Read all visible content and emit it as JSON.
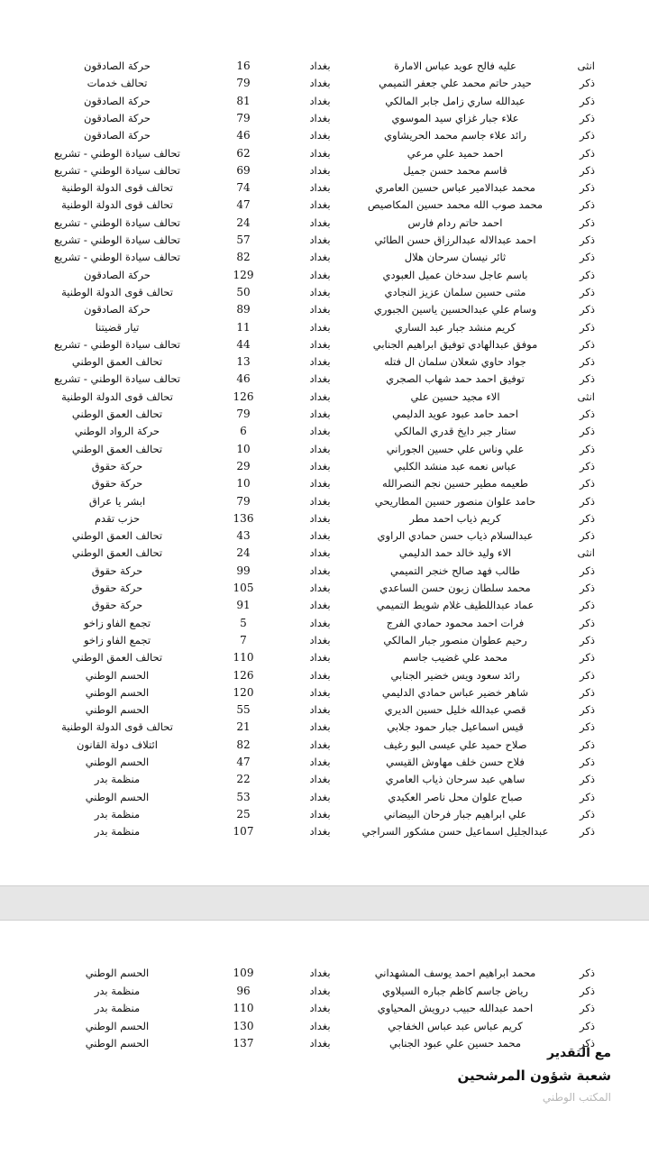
{
  "city_default": "بغداد",
  "table_page1": [
    [
      "انثى",
      "عليه فالح عويد عباس الامارة",
      "بغداد",
      "16",
      "حركة الصادقون"
    ],
    [
      "ذكر",
      "حيدر حاتم محمد علي جعفر التميمي",
      "بغداد",
      "79",
      "تحالف خدمات"
    ],
    [
      "ذكر",
      "عبدالله ساري زامل جابر المالكي",
      "بغداد",
      "81",
      "حركة الصادقون"
    ],
    [
      "ذكر",
      "علاء جبار غزاي سيد الموسوي",
      "بغداد",
      "79",
      "حركة الصادقون"
    ],
    [
      "ذكر",
      "رائد علاء جاسم محمد  الحريشاوي",
      "بغداد",
      "46",
      "حركة الصادقون"
    ],
    [
      "ذكر",
      "احمد حميد علي مرعي",
      "بغداد",
      "62",
      "تحالف سيادة الوطني - تشريع"
    ],
    [
      "ذكر",
      "قاسم محمد حسن جميل",
      "بغداد",
      "69",
      "تحالف سيادة الوطني - تشريع"
    ],
    [
      "ذكر",
      "محمد عبدالامير عباس  حسين العامري",
      "بغداد",
      "74",
      "تحالف قوى الدولة الوطنية"
    ],
    [
      "ذكر",
      "محمد صوب الله محمد حسين المكاصيص",
      "بغداد",
      "47",
      "تحالف قوى الدولة الوطنية"
    ],
    [
      "ذكر",
      "احمد حاتم ردام فارس",
      "بغداد",
      "24",
      "تحالف سيادة الوطني - تشريع"
    ],
    [
      "ذكر",
      "احمد عبدالاله عبدالرزاق حسن  الطائي",
      "بغداد",
      "57",
      "تحالف سيادة الوطني - تشريع"
    ],
    [
      "ذكر",
      "ثائر نيسان سرحان  هلال",
      "بغداد",
      "82",
      "تحالف سيادة الوطني - تشريع"
    ],
    [
      "ذكر",
      "باسم عاجل سدخان عميل العبودي",
      "بغداد",
      "129",
      "حركة الصادقون"
    ],
    [
      "ذكر",
      "مثنى حسين سلمان عزيز النجادي",
      "بغداد",
      "50",
      "تحالف قوى الدولة الوطنية"
    ],
    [
      "ذكر",
      "وسام علي عبدالحسين ياسين الجبوري",
      "بغداد",
      "89",
      "حركة الصادقون"
    ],
    [
      "ذكر",
      "كريم منشد جبار عبد الساري",
      "بغداد",
      "11",
      "تيار قضيتنا"
    ],
    [
      "ذكر",
      "موفق عبدالهادي توفيق ابراهيم الجنابي",
      "بغداد",
      "44",
      "تحالف سيادة الوطني - تشريع"
    ],
    [
      "ذكر",
      "جواد حاوي شعلان سلمان ال فتله",
      "بغداد",
      "13",
      "تحالف العمق الوطني"
    ],
    [
      "ذكر",
      "توفيق احمد حمد شهاب الصجري",
      "بغداد",
      "46",
      "تحالف سيادة الوطني - تشريع"
    ],
    [
      "انثى",
      "الاء مجيد حسين علي",
      "بغداد",
      "126",
      "تحالف قوى الدولة الوطنية"
    ],
    [
      "ذكر",
      "احمد حامد عبود عويد الدليمي",
      "بغداد",
      "79",
      "تحالف العمق الوطني"
    ],
    [
      "ذكر",
      "ستار جبر دايخ قدري المالكي",
      "بغداد",
      "6",
      "حركة الرواد الوطني"
    ],
    [
      "ذكر",
      "علي وناس علي حسين الجوراني",
      "بغداد",
      "10",
      "تحالف العمق الوطني"
    ],
    [
      "ذكر",
      "عباس نعمه عبد منشد الكلبي",
      "بغداد",
      "29",
      "حركة حقوق"
    ],
    [
      "ذكر",
      "طعيمه مطير حسين نجم النصرالله",
      "بغداد",
      "10",
      "حركة حقوق"
    ],
    [
      "ذكر",
      "حامد علوان منصور حسين المطاريحي",
      "بغداد",
      "79",
      "ابشر يا عراق"
    ],
    [
      "ذكر",
      "كريم ذياب احمد مطر",
      "بغداد",
      "136",
      "حزب تقدم"
    ],
    [
      "ذكر",
      "عبدالسلام ذياب حسن حمادي الراوي",
      "بغداد",
      "43",
      "تحالف العمق الوطني"
    ],
    [
      "انثى",
      "الاء وليد خالد حمد الدليمي",
      "بغداد",
      "24",
      "تحالف العمق الوطني"
    ],
    [
      "ذكر",
      "طالب فهد صالح خنجر  التميمي",
      "بغداد",
      "99",
      "حركة حقوق"
    ],
    [
      "ذكر",
      "محمد سلطان زبون حسن  الساعدي",
      "بغداد",
      "105",
      "حركة حقوق"
    ],
    [
      "ذكر",
      "عماد عبداللطيف غلام شويط التميمي",
      "بغداد",
      "91",
      "حركة حقوق"
    ],
    [
      "ذكر",
      "فرات احمد محمود حمادي الفرج",
      "بغداد",
      "5",
      "تجمع الفاو زاخو"
    ],
    [
      "ذكر",
      "رحيم عطوان منصور جبار المالكي",
      "بغداد",
      "7",
      "تجمع الفاو زاخو"
    ],
    [
      "ذكر",
      "محمد علي غضيب جاسم",
      "بغداد",
      "110",
      "تحالف العمق الوطني"
    ],
    [
      "ذكر",
      "رائد سعود ويس خضير الجنابي",
      "بغداد",
      "126",
      "الحسم الوطني"
    ],
    [
      "ذكر",
      "شاهر خضير عباس حمادي الدليمي",
      "بغداد",
      "120",
      "الحسم الوطني"
    ],
    [
      "ذكر",
      "قصي عبدالله خليل حسين الديري",
      "بغداد",
      "55",
      "الحسم الوطني"
    ],
    [
      "ذكر",
      "قيس اسماعيل جبار حمود جلابي",
      "بغداد",
      "21",
      "تحالف قوى الدولة الوطنية"
    ],
    [
      "ذكر",
      "صلاح حميد علي عيسى البو رغيف",
      "بغداد",
      "82",
      "ائتلاف دولة القانون"
    ],
    [
      "ذكر",
      "فلاح حسن خلف مهاوش القيسي",
      "بغداد",
      "47",
      "الحسم الوطني"
    ],
    [
      "ذكر",
      "ساهي عبد سرحان ذياب العامري",
      "بغداد",
      "22",
      "منظمة بدر"
    ],
    [
      "ذكر",
      "صباح علوان محل ناصر العكيدي",
      "بغداد",
      "53",
      "الحسم الوطني"
    ],
    [
      "ذكر",
      "علي ابراهيم جبار فرحان البيضاني",
      "بغداد",
      "25",
      "منظمة بدر"
    ],
    [
      "ذكر",
      "عبدالجليل اسماعيل حسن مشكور  السراجي",
      "بغداد",
      "107",
      "منظمة بدر"
    ]
  ],
  "table_page2": [
    [
      "ذكر",
      "محمد ابراهيم احمد يوسف المشهداني",
      "بغداد",
      "109",
      "الحسم الوطني"
    ],
    [
      "ذكر",
      "رياض جاسم كاظم جباره السيلاوي",
      "بغداد",
      "96",
      "منظمة بدر"
    ],
    [
      "ذكر",
      "احمد عبدالله حبيب درويش المحياوي",
      "بغداد",
      "110",
      "منظمة بدر"
    ],
    [
      "ذكر",
      "كريم عباس عبد عباس الخفاجي",
      "بغداد",
      "130",
      "الحسم الوطني"
    ],
    [
      "ذكر",
      "محمد حسين علي عبود الجنابي",
      "بغداد",
      "137",
      "الحسم الوطني"
    ]
  ],
  "signature": {
    "line1": "مع التقدير",
    "line2": "شعبة شؤون المرشحين",
    "line3": "المكتب الوطني"
  }
}
